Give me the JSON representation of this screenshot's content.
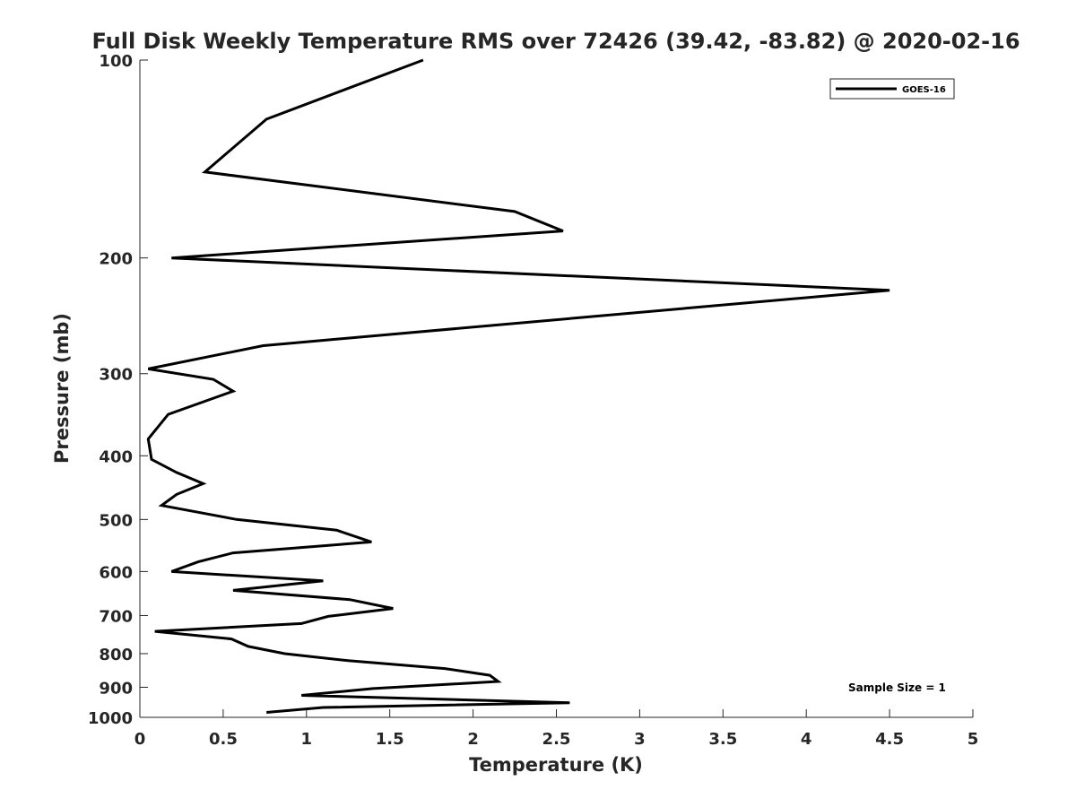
{
  "chart_data": {
    "type": "line",
    "title": "Full Disk Weekly Temperature RMS over 72426 (39.42, -83.82) @ 2020-02-16",
    "xlabel": "Temperature (K)",
    "ylabel": "Pressure (mb)",
    "xlim": [
      0,
      5
    ],
    "ylim": [
      100,
      1000
    ],
    "y_scale": "log",
    "y_reversed": true,
    "xticks": [
      0,
      0.5,
      1,
      1.5,
      2,
      2.5,
      3,
      3.5,
      4,
      4.5,
      5
    ],
    "xtick_labels": [
      "0",
      "0.5",
      "1",
      "1.5",
      "2",
      "2.5",
      "3",
      "3.5",
      "4",
      "4.5",
      "5"
    ],
    "yticks": [
      100,
      200,
      300,
      400,
      500,
      600,
      700,
      800,
      900,
      1000
    ],
    "ytick_labels": [
      "100",
      "200",
      "300",
      "400",
      "500",
      "600",
      "700",
      "800",
      "900",
      "1000"
    ],
    "grid": false,
    "legend_position": "top-right",
    "series": [
      {
        "name": "GOES-16",
        "color": "#000000",
        "x": [
          1.7,
          0.76,
          0.39,
          2.25,
          2.54,
          0.19,
          4.5,
          0.74,
          0.05,
          0.44,
          0.56,
          0.17,
          0.05,
          0.07,
          0.22,
          0.38,
          0.22,
          0.13,
          0.58,
          1.18,
          1.39,
          0.56,
          0.35,
          0.19,
          1.1,
          0.56,
          1.26,
          1.52,
          1.13,
          0.97,
          0.09,
          0.55,
          0.65,
          0.87,
          1.25,
          1.83,
          2.1,
          2.15,
          1.4,
          0.97,
          2.58,
          1.1,
          0.76
        ],
        "y": [
          100,
          123,
          148,
          170,
          182,
          200,
          224,
          272,
          295,
          306,
          319,
          346,
          377,
          405,
          424,
          441,
          458,
          476,
          500,
          519,
          541,
          562,
          580,
          600,
          620,
          641,
          662,
          683,
          702,
          720,
          740,
          760,
          780,
          800,
          820,
          843,
          863,
          882,
          904,
          926,
          950,
          966,
          983
        ]
      }
    ],
    "annotations": [
      "Sample Size = 1"
    ]
  }
}
